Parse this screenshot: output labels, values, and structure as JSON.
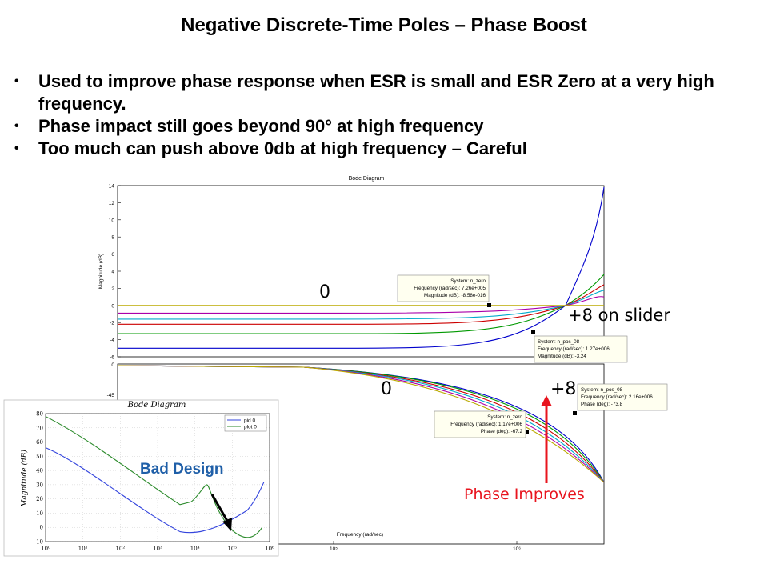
{
  "slide": {
    "title": "Negative Discrete-Time Poles – Phase Boost",
    "bullets": [
      "Used to improve phase response when ESR is small and ESR Zero at a very high frequency.",
      "Phase impact still goes beyond 90° at high frequency",
      "Too much can push above 0db at high frequency – Careful"
    ],
    "bullet_marker": "•"
  },
  "annotations": {
    "zero_mag": "0",
    "slider_mag": "+8 on slider",
    "zero_phase": "0",
    "plus8_phase": "+8",
    "phase_improves": "Phase Improves",
    "bad_design": "Bad Design"
  },
  "colors": {
    "accent_red": "#e8141e",
    "bad_design_blue": "#1f5fa8",
    "tooltip_bg": "#fffff0"
  },
  "tooltips": [
    {
      "lines": [
        "System: n_zero",
        "Frequency (rad/sec): 7.26e+005",
        "Magnitude (dB): -8.58e-016"
      ]
    },
    {
      "lines": [
        "System: n_pos_08",
        "Frequency (rad/sec): 1.27e+006",
        "Magnitude (dB): -3.24"
      ]
    },
    {
      "lines": [
        "System: n_pos_08",
        "Frequency (rad/sec): 2.16e+006",
        "Phase (deg): -73.8"
      ]
    },
    {
      "lines": [
        "System: n_zero",
        "Frequency (rad/sec): 1.17e+006",
        "Phase (deg): -67.2"
      ]
    }
  ],
  "chart_data": [
    {
      "type": "line",
      "title": "Bode Diagram",
      "panel": "magnitude",
      "ylabel": "Magnitude (dB)",
      "ylim": [
        -6,
        14
      ],
      "yticks": [
        "14",
        "12",
        "10",
        "8",
        "6",
        "4",
        "2",
        "0",
        "-2",
        "-4",
        "-6"
      ],
      "xscale": "log",
      "series": [
        {
          "color": "#0000cc",
          "low_db": -5.0
        },
        {
          "color": "#009900",
          "low_db": -3.3
        },
        {
          "color": "#cc0000",
          "low_db": -2.2
        },
        {
          "color": "#00aacc",
          "low_db": -1.6
        },
        {
          "color": "#aa00aa",
          "low_db": -0.9
        },
        {
          "color": "#bbaa00",
          "low_db": 0.0
        }
      ]
    },
    {
      "type": "line",
      "panel": "phase",
      "yticks": [
        "0",
        "-45"
      ],
      "xscale": "log",
      "xticks": [
        "10⁵",
        "10⁶"
      ],
      "xlabel": "Frequency (rad/sec)"
    },
    {
      "type": "line",
      "title": "Bode Diagram",
      "ylabel": "Magnitude (dB)",
      "ylim": [
        -10,
        80
      ],
      "yticks": [
        "80",
        "70",
        "60",
        "50",
        "40",
        "30",
        "20",
        "10",
        "0",
        "−10"
      ],
      "xscale": "log",
      "xticks": [
        "10⁰",
        "10¹",
        "10²",
        "10³",
        "10⁴",
        "10⁵",
        "10⁶"
      ],
      "legend": [
        {
          "name": "pid 0",
          "color": "#3344dd"
        },
        {
          "name": "plot 0",
          "color": "#2a8a2a"
        }
      ],
      "legend_position": "top-right"
    }
  ]
}
